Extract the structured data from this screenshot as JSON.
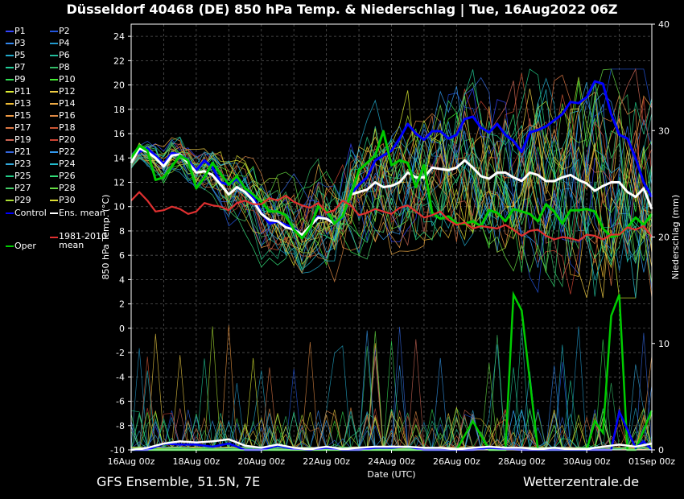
{
  "title": "Düsseldorf 40468 (DE)  850 hPa Temp. & Niederschlag | Tue, 16Aug2022 06Z",
  "footer": {
    "left": "GFS Ensemble, 51.5N, 7E",
    "right": "Wetterzentrale.de"
  },
  "chart_data": {
    "type": "line",
    "xlabel": "Date (UTC)",
    "ylabel": "850 hPa Temp. (°C)",
    "y2label": "Niederschlag (mm)",
    "x_range_days": [
      0,
      16
    ],
    "ylim": [
      -10,
      25
    ],
    "y2lim": [
      0,
      40
    ],
    "grid": true,
    "x_ticks": [
      {
        "day": 0,
        "label": "16Aug 00z"
      },
      {
        "day": 2,
        "label": "18Aug 00z"
      },
      {
        "day": 4,
        "label": "20Aug 00z"
      },
      {
        "day": 6,
        "label": "22Aug 00z"
      },
      {
        "day": 8,
        "label": "24Aug 00z"
      },
      {
        "day": 10,
        "label": "26Aug 00z"
      },
      {
        "day": 12,
        "label": "28Aug 00z"
      },
      {
        "day": 14,
        "label": "30Aug 00z"
      },
      {
        "day": 16,
        "label": "01Sep 00z"
      }
    ],
    "y_ticks": [
      24,
      22,
      20,
      18,
      16,
      14,
      12,
      10,
      8,
      6,
      4,
      2,
      0,
      -2,
      -4,
      -6,
      -8,
      -10
    ],
    "y2_ticks": [
      40,
      30,
      20,
      10,
      0
    ],
    "legend": [
      {
        "label": "P1",
        "color": "#3344ff"
      },
      {
        "label": "P2",
        "color": "#2255dd"
      },
      {
        "label": "P3",
        "color": "#3388ee"
      },
      {
        "label": "P4",
        "color": "#2299cc"
      },
      {
        "label": "P5",
        "color": "#22aacc"
      },
      {
        "label": "P6",
        "color": "#22bb99"
      },
      {
        "label": "P7",
        "color": "#22cc99"
      },
      {
        "label": "P8",
        "color": "#33bb66"
      },
      {
        "label": "P9",
        "color": "#33dd55"
      },
      {
        "label": "P10",
        "color": "#44ee33"
      },
      {
        "label": "P11",
        "color": "#ddee33"
      },
      {
        "label": "P12",
        "color": "#eecc44"
      },
      {
        "label": "P13",
        "color": "#eebb33"
      },
      {
        "label": "P14",
        "color": "#eeaa44"
      },
      {
        "label": "P15",
        "color": "#ee9944"
      },
      {
        "label": "P16",
        "color": "#dd8844"
      },
      {
        "label": "P17",
        "color": "#dd7744"
      },
      {
        "label": "P18",
        "color": "#cc5533"
      },
      {
        "label": "P19",
        "color": "#cc6655"
      },
      {
        "label": "P20",
        "color": "#cc4433"
      },
      {
        "label": "P21",
        "color": "#3366dd"
      },
      {
        "label": "P22",
        "color": "#3399ee"
      },
      {
        "label": "P23",
        "color": "#33aadd"
      },
      {
        "label": "P24",
        "color": "#22bbcc"
      },
      {
        "label": "P25",
        "color": "#22cc88"
      },
      {
        "label": "P26",
        "color": "#33dd77"
      },
      {
        "label": "P27",
        "color": "#44cc66"
      },
      {
        "label": "P28",
        "color": "#66dd44"
      },
      {
        "label": "P29",
        "color": "#aadd33"
      },
      {
        "label": "P30",
        "color": "#dddd33"
      },
      {
        "label": "Control",
        "color": "#0000ff"
      },
      {
        "label": "Ens. mean",
        "color": "#ffffff"
      },
      {
        "label": "1981-2010 mean",
        "color": "#e03030"
      },
      {
        "label": "Oper",
        "color": "#00cc00"
      }
    ],
    "series": [
      {
        "name": "Control",
        "color": "#0000ff",
        "x": [
          0,
          0.25,
          0.5,
          0.75,
          1,
          1.25,
          1.5,
          1.75,
          2,
          2.25,
          2.5,
          2.75,
          3,
          3.25,
          3.5,
          3.75,
          4,
          4.25,
          4.5,
          4.75,
          5,
          5.25,
          5.5,
          5.75,
          6,
          6.25,
          6.5,
          6.75,
          7,
          7.25,
          7.5,
          7.75,
          8,
          8.25,
          8.5,
          8.75,
          9,
          9.25,
          9.5,
          9.75,
          10,
          10.25,
          10.5,
          10.75,
          11,
          11.25,
          11.5,
          11.75,
          12,
          12.25,
          12.5,
          12.75,
          13,
          13.25,
          13.5,
          13.75,
          14,
          14.25,
          14.5,
          14.75,
          15,
          15.25,
          15.5,
          15.75,
          16
        ],
        "y": [
          14,
          14.5,
          14.8,
          14.2,
          13.5,
          14.4,
          14.3,
          13.8,
          13,
          13.8,
          13.2,
          12,
          11.8,
          12.3,
          11.5,
          10.8,
          9.5,
          8.6,
          8.8,
          8.5,
          8.2,
          7.6,
          8.4,
          9.2,
          9,
          8.6,
          9.1,
          11,
          11.8,
          12.4,
          13.8,
          14.2,
          14.6,
          15.6,
          16.8,
          16,
          15.5,
          16.2,
          16.2,
          15.6,
          15.9,
          17.2,
          17.4,
          16.5,
          16.1,
          16.8,
          15.9,
          15.4,
          14.5,
          16.1,
          16.3,
          16.6,
          17.1,
          17.6,
          18.6,
          18.5,
          19,
          20.3,
          20.1,
          17.6,
          15.9,
          15.6,
          14,
          12,
          10.8
        ]
      },
      {
        "name": "Ens. mean",
        "color": "#ffffff",
        "x": [
          0,
          0.25,
          0.5,
          0.75,
          1,
          1.25,
          1.5,
          1.75,
          2,
          2.25,
          2.5,
          2.75,
          3,
          3.25,
          3.5,
          3.75,
          4,
          4.25,
          4.5,
          4.75,
          5,
          5.25,
          5.5,
          5.75,
          6,
          6.25,
          6.5,
          6.75,
          7,
          7.25,
          7.5,
          7.75,
          8,
          8.25,
          8.5,
          8.75,
          9,
          9.25,
          9.5,
          9.75,
          10,
          10.25,
          10.5,
          10.75,
          11,
          11.25,
          11.5,
          11.75,
          12,
          12.25,
          12.5,
          12.75,
          13,
          13.25,
          13.5,
          13.75,
          14,
          14.25,
          14.5,
          14.75,
          15,
          15.25,
          15.5,
          15.75,
          16
        ],
        "y": [
          13.6,
          14.8,
          14.5,
          14,
          13.3,
          14.2,
          14.3,
          13.6,
          12.8,
          12.9,
          12.6,
          11.8,
          11,
          11.6,
          11.2,
          10.5,
          9.4,
          8.9,
          8.8,
          8.3,
          8.1,
          7.7,
          8.4,
          9.1,
          9,
          8.6,
          9.2,
          11,
          11.2,
          11.4,
          12,
          11.6,
          11.7,
          12,
          12.8,
          12.4,
          12.4,
          13.2,
          13.1,
          13,
          13.2,
          13.8,
          13.2,
          12.5,
          12.3,
          12.8,
          12.8,
          12.4,
          12.1,
          12.8,
          12.6,
          12.1,
          12.1,
          12.4,
          12.6,
          12.2,
          11.9,
          11.3,
          11.7,
          12,
          12,
          11.2,
          10.8,
          11.5,
          9.8
        ]
      },
      {
        "name": "Oper",
        "color": "#00cc00",
        "x": [
          0,
          0.25,
          0.5,
          0.75,
          1,
          1.25,
          1.5,
          1.75,
          2,
          2.25,
          2.5,
          2.75,
          3,
          3.25,
          3.5,
          3.75,
          4,
          4.25,
          4.5,
          4.75,
          5,
          5.25,
          5.5,
          5.75,
          6,
          6.25,
          6.5,
          6.75,
          7,
          7.25,
          7.5,
          7.75,
          8,
          8.25,
          8.5,
          8.75,
          9,
          9.25,
          9.5,
          9.75,
          10,
          10.25,
          10.5,
          10.75,
          11,
          11.25,
          11.5,
          11.75,
          12,
          12.25,
          12.5,
          12.75,
          13,
          13.25,
          13.5,
          13.75,
          14,
          14.25,
          14.5,
          14.75,
          15,
          15.25,
          15.5,
          15.75,
          16
        ],
        "y": [
          14,
          15,
          14.6,
          12.2,
          12.4,
          13.3,
          14.2,
          13.8,
          11.5,
          12.4,
          13.6,
          12.7,
          11.8,
          12.5,
          11.5,
          11,
          10.4,
          9.6,
          9.6,
          9.3,
          8.1,
          7.4,
          8.3,
          10,
          9.7,
          8.6,
          9.2,
          11,
          13,
          13.6,
          14.2,
          16.2,
          13.4,
          13.8,
          13.6,
          11.6,
          13.4,
          9.5,
          9,
          9.2,
          8.6,
          8.6,
          8.8,
          8.4,
          9.7,
          9.5,
          8.8,
          9.8,
          9.6,
          9.4,
          8.8,
          10.2,
          9.6,
          8.6,
          9.7,
          9.7,
          9.8,
          9.6,
          8.2,
          7.5,
          7.7,
          8.3,
          9.1,
          8.5,
          9.4
        ]
      },
      {
        "name": "1981-2010 mean",
        "color": "#e03030",
        "x": [
          0,
          0.25,
          0.5,
          0.75,
          1,
          1.25,
          1.5,
          1.75,
          2,
          2.25,
          2.5,
          2.75,
          3,
          3.25,
          3.5,
          3.75,
          4,
          4.25,
          4.5,
          4.75,
          5,
          5.25,
          5.5,
          5.75,
          6,
          6.25,
          6.5,
          6.75,
          7,
          7.25,
          7.5,
          7.75,
          8,
          8.25,
          8.5,
          8.75,
          9,
          9.25,
          9.5,
          9.75,
          10,
          10.25,
          10.5,
          10.75,
          11,
          11.25,
          11.5,
          11.75,
          12,
          12.25,
          12.5,
          12.75,
          13,
          13.25,
          13.5,
          13.75,
          14,
          14.25,
          14.5,
          14.75,
          15,
          15.25,
          15.5,
          15.75,
          16
        ],
        "y": [
          10.5,
          11.2,
          10.5,
          9.6,
          9.7,
          10,
          9.8,
          9.4,
          9.6,
          10.3,
          10.1,
          10,
          9.7,
          10.3,
          10.5,
          10.2,
          10.2,
          10.7,
          10.5,
          10.9,
          10.4,
          10.1,
          9.9,
          10.3,
          9.5,
          9.7,
          10.5,
          10.1,
          9.3,
          9.5,
          9.8,
          9.6,
          9.4,
          9.9,
          10.1,
          9.6,
          9.1,
          9.3,
          9.6,
          8.9,
          8.5,
          8.7,
          8.2,
          8.4,
          8.3,
          8.2,
          8.5,
          8.1,
          7.6,
          8,
          8.1,
          7.6,
          7.3,
          7.5,
          7.4,
          7.2,
          7.7,
          7.6,
          7.3,
          7.7,
          7.7,
          8.3,
          8.1,
          8.4,
          7.5
        ]
      }
    ],
    "precip_series": [
      {
        "name": "Oper",
        "color": "#00cc00",
        "x": [
          0,
          0.5,
          1,
          1.5,
          2,
          2.5,
          3,
          3.5,
          4,
          4.5,
          5,
          5.5,
          6,
          6.5,
          7,
          7.5,
          8,
          8.5,
          9,
          9.5,
          10,
          10.5,
          11,
          11.25,
          11.5,
          11.75,
          12,
          12.5,
          13,
          13.5,
          14,
          14.25,
          14.5,
          14.75,
          15,
          15.25,
          15.5,
          16
        ],
        "y": [
          0,
          0,
          0,
          0,
          0,
          0,
          0,
          0,
          0,
          0,
          0,
          0,
          0,
          0,
          0,
          0,
          0,
          0,
          0,
          0,
          0,
          2.7,
          0,
          0,
          0,
          14.6,
          13.1,
          0,
          0,
          0,
          0,
          2.7,
          1.6,
          12.6,
          14.6,
          0,
          0,
          3.7
        ]
      },
      {
        "name": "Control",
        "color": "#0000ff",
        "x": [
          0,
          0.5,
          1,
          1.5,
          2,
          2.5,
          3,
          3.5,
          4,
          4.5,
          5,
          5.5,
          6,
          6.5,
          7,
          7.5,
          8,
          8.5,
          9,
          9.5,
          10,
          10.5,
          11,
          11.5,
          12,
          12.5,
          13,
          13.5,
          14,
          14.5,
          14.75,
          15,
          15.5,
          15.75,
          16
        ],
        "y": [
          0,
          0,
          0.6,
          0.5,
          0.5,
          0.3,
          0.6,
          0,
          0,
          0.4,
          0.1,
          0,
          0.2,
          0,
          0,
          0.2,
          0.2,
          0.3,
          0,
          0,
          0,
          0,
          0.2,
          0.1,
          0,
          0,
          0,
          0,
          0,
          0,
          0,
          3.6,
          0.2,
          0.8,
          0
        ]
      },
      {
        "name": "Ens. mean",
        "color": "#ffffff",
        "x": [
          0,
          0.5,
          1,
          1.5,
          2,
          2.5,
          3,
          3.5,
          4,
          4.5,
          5,
          5.5,
          6,
          6.5,
          7,
          7.5,
          8,
          8.5,
          9,
          9.5,
          10,
          10.5,
          11,
          11.5,
          12,
          12.5,
          13,
          13.5,
          14,
          14.5,
          15,
          15.5,
          16
        ],
        "y": [
          0,
          0.2,
          0.6,
          0.8,
          0.7,
          0.8,
          1,
          0.4,
          0.2,
          0.5,
          0.2,
          0.1,
          0.3,
          0.1,
          0.2,
          0.3,
          0.3,
          0.3,
          0.2,
          0.2,
          0.1,
          0.2,
          0.3,
          0.2,
          0.2,
          0.1,
          0.2,
          0.1,
          0.1,
          0.3,
          0.5,
          0.3,
          0.6
        ]
      }
    ]
  }
}
